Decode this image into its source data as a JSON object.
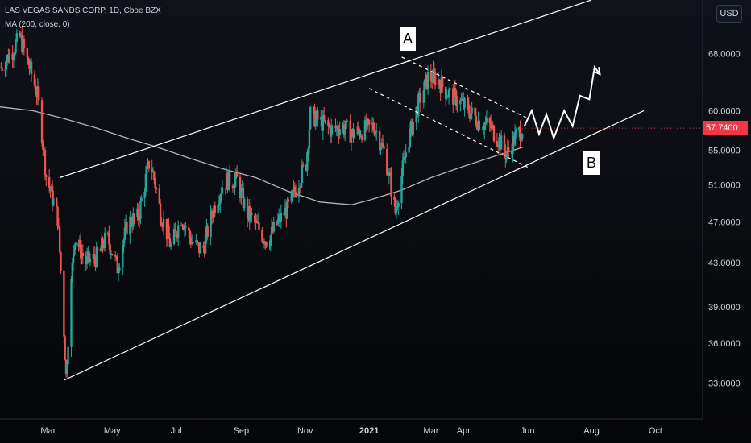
{
  "header": {
    "title": "LAS VEGAS SANDS CORP, 1D, Cboe BZX",
    "indicator": "MA (200, close, 0)"
  },
  "currency_button": "USD",
  "last_price_label": "57.7400",
  "annotations": {
    "a": "A",
    "b": "B"
  },
  "colors": {
    "background": "#131722",
    "up": "#26a69a",
    "down": "#ef5350",
    "ma": "#b2b5be",
    "lines": "#ffffff",
    "price_tag": "#f23645"
  },
  "chart_data": {
    "type": "candlestick",
    "title": "LAS VEGAS SANDS CORP, 1D, Cboe BZX",
    "ylim": [
      30.5,
      76.5
    ],
    "y_scale": "log",
    "y_ticks": [
      {
        "value": 33,
        "label": "33.0000"
      },
      {
        "value": 36,
        "label": "36.0000"
      },
      {
        "value": 39,
        "label": "39.0000"
      },
      {
        "value": 43,
        "label": "43.0000"
      },
      {
        "value": 47,
        "label": "47.0000"
      },
      {
        "value": 51,
        "label": "51.0000"
      },
      {
        "value": 55,
        "label": "55.0000"
      },
      {
        "value": 60,
        "label": "60.0000"
      },
      {
        "value": 68,
        "label": "68.0000"
      }
    ],
    "x_ticks": [
      {
        "date": "2020-03-01",
        "label": "Mar",
        "bold": false
      },
      {
        "date": "2020-05-01",
        "label": "May",
        "bold": false
      },
      {
        "date": "2020-07-01",
        "label": "Jul",
        "bold": false
      },
      {
        "date": "2020-09-01",
        "label": "Sep",
        "bold": false
      },
      {
        "date": "2020-11-01",
        "label": "Nov",
        "bold": false
      },
      {
        "date": "2021-01-01",
        "label": "2021",
        "bold": true
      },
      {
        "date": "2021-03-01",
        "label": "Mar",
        "bold": false
      },
      {
        "date": "2021-04-01",
        "label": "Apr",
        "bold": false
      },
      {
        "date": "2021-06-01",
        "label": "Jun",
        "bold": false
      },
      {
        "date": "2021-08-01",
        "label": "Aug",
        "bold": false
      },
      {
        "date": "2021-10-01",
        "label": "Oct",
        "bold": false
      }
    ],
    "xlim": [
      "2020-01-15",
      "2021-11-15"
    ],
    "last_price": 57.74,
    "grid": false,
    "price_path": [
      [
        "2020-01-16",
        66.0
      ],
      [
        "2020-01-27",
        68.5
      ],
      [
        "2020-02-03",
        70.5
      ],
      [
        "2020-02-12",
        66.0
      ],
      [
        "2020-02-20",
        62.0
      ],
      [
        "2020-02-28",
        52.0
      ],
      [
        "2020-03-10",
        47.5
      ],
      [
        "2020-03-18",
        33.5
      ],
      [
        "2020-03-26",
        45.5
      ],
      [
        "2020-04-06",
        43.0
      ],
      [
        "2020-04-16",
        43.5
      ],
      [
        "2020-04-26",
        45.5
      ],
      [
        "2020-05-06",
        42.5
      ],
      [
        "2020-05-16",
        47.0
      ],
      [
        "2020-05-26",
        47.5
      ],
      [
        "2020-06-06",
        54.0
      ],
      [
        "2020-06-16",
        48.0
      ],
      [
        "2020-06-26",
        44.5
      ],
      [
        "2020-07-06",
        47.5
      ],
      [
        "2020-07-16",
        45.0
      ],
      [
        "2020-07-26",
        44.0
      ],
      [
        "2020-08-06",
        48.5
      ],
      [
        "2020-08-16",
        51.5
      ],
      [
        "2020-08-28",
        51.5
      ],
      [
        "2020-09-06",
        48.0
      ],
      [
        "2020-09-16",
        46.5
      ],
      [
        "2020-09-26",
        45.0
      ],
      [
        "2020-10-06",
        47.0
      ],
      [
        "2020-10-16",
        48.5
      ],
      [
        "2020-10-26",
        51.5
      ],
      [
        "2020-11-02",
        53.5
      ],
      [
        "2020-11-06",
        59.5
      ],
      [
        "2020-11-16",
        58.5
      ],
      [
        "2020-11-26",
        57.5
      ],
      [
        "2020-12-06",
        58.0
      ],
      [
        "2020-12-16",
        57.0
      ],
      [
        "2020-12-26",
        57.5
      ],
      [
        "2021-01-06",
        58.0
      ],
      [
        "2021-01-16",
        54.5
      ],
      [
        "2021-01-26",
        48.0
      ],
      [
        "2021-02-06",
        55.5
      ],
      [
        "2021-02-16",
        60.5
      ],
      [
        "2021-02-26",
        64.5
      ],
      [
        "2021-03-06",
        64.5
      ],
      [
        "2021-03-16",
        62.5
      ],
      [
        "2021-03-26",
        61.5
      ],
      [
        "2021-04-06",
        60.0
      ],
      [
        "2021-04-16",
        58.5
      ],
      [
        "2021-04-26",
        58.0
      ],
      [
        "2021-05-06",
        56.0
      ],
      [
        "2021-05-12",
        54.5
      ],
      [
        "2021-05-20",
        56.5
      ],
      [
        "2021-05-27",
        57.74
      ]
    ],
    "series": [
      {
        "name": "MA (200, close, 0)",
        "points": [
          [
            "2020-01-15",
            60.5
          ],
          [
            "2020-02-15",
            60.0
          ],
          [
            "2020-03-15",
            59.0
          ],
          [
            "2020-04-15",
            57.8
          ],
          [
            "2020-05-15",
            56.5
          ],
          [
            "2020-06-15",
            55.3
          ],
          [
            "2020-07-15",
            54.0
          ],
          [
            "2020-08-15",
            52.8
          ],
          [
            "2020-09-15",
            51.8
          ],
          [
            "2020-10-15",
            50.3
          ],
          [
            "2020-11-15",
            49.1
          ],
          [
            "2020-12-15",
            48.8
          ],
          [
            "2021-01-01",
            49.3
          ],
          [
            "2021-02-01",
            50.4
          ],
          [
            "2021-03-01",
            51.8
          ],
          [
            "2021-04-01",
            53.1
          ],
          [
            "2021-05-01",
            54.3
          ],
          [
            "2021-05-28",
            55.4
          ]
        ]
      }
    ],
    "drawings": [
      {
        "name": "upper-channel-line",
        "style": "solid",
        "points": [
          [
            "2020-03-12",
            51.8
          ],
          [
            "2021-08-01",
            76.5
          ]
        ]
      },
      {
        "name": "lower-channel-line",
        "style": "solid",
        "points": [
          [
            "2020-03-16",
            33.2
          ],
          [
            "2021-09-20",
            60.0
          ]
        ]
      },
      {
        "name": "falling-channel-upper",
        "style": "dashed",
        "points": [
          [
            "2021-02-01",
            67.5
          ],
          [
            "2021-06-01",
            59.0
          ]
        ]
      },
      {
        "name": "falling-channel-lower",
        "style": "dashed",
        "points": [
          [
            "2021-01-01",
            63.0
          ],
          [
            "2021-06-01",
            53.0
          ]
        ]
      },
      {
        "name": "projection-path",
        "style": "solid",
        "points": [
          [
            "2021-05-29",
            58.0
          ],
          [
            "2021-06-05",
            60.0
          ],
          [
            "2021-06-12",
            57.0
          ],
          [
            "2021-06-19",
            59.5
          ],
          [
            "2021-06-26",
            56.5
          ],
          [
            "2021-07-06",
            60.0
          ],
          [
            "2021-07-14",
            58.0
          ],
          [
            "2021-07-21",
            62.0
          ],
          [
            "2021-07-30",
            61.5
          ],
          [
            "2021-08-04",
            66.0
          ],
          [
            "2021-08-09",
            65.0
          ]
        ]
      }
    ]
  }
}
